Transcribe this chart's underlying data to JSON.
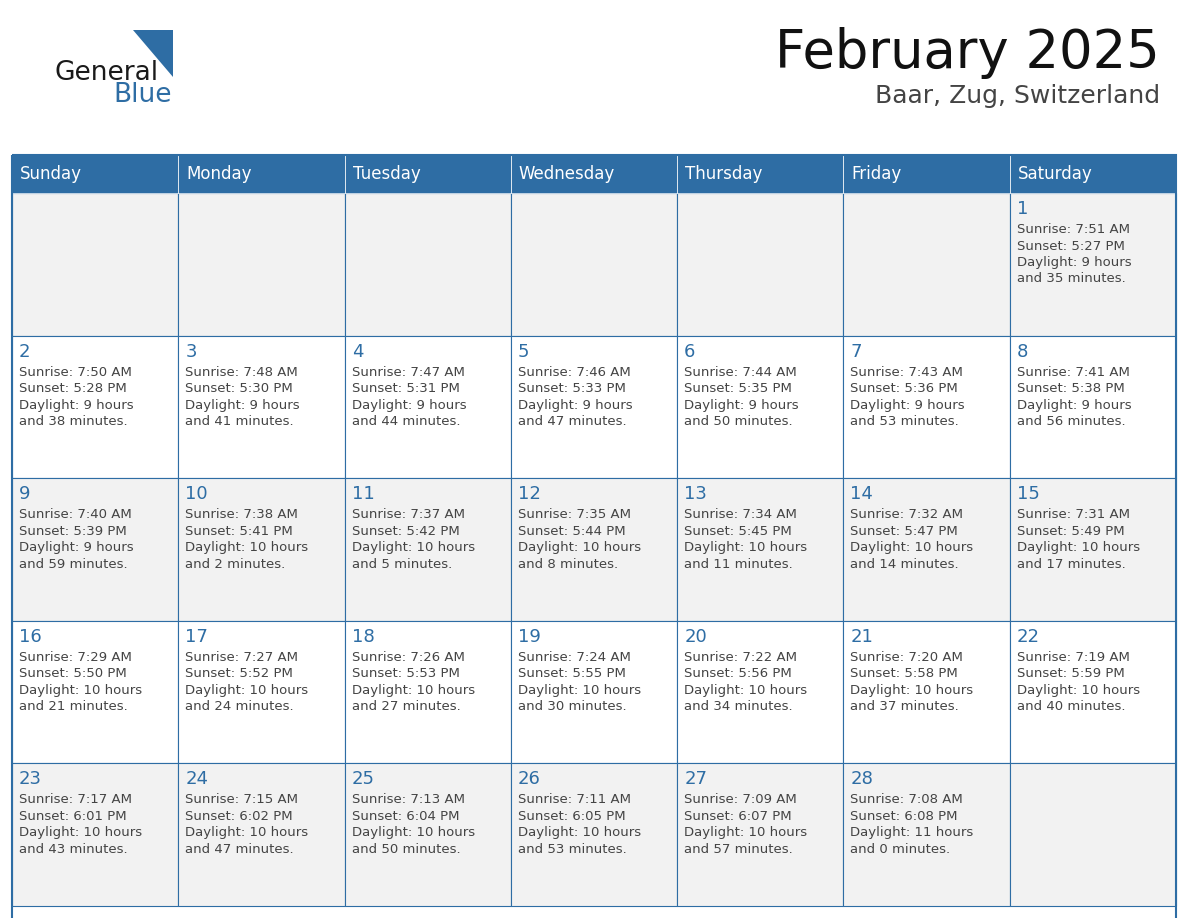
{
  "title": "February 2025",
  "subtitle": "Baar, Zug, Switzerland",
  "days_of_week": [
    "Sunday",
    "Monday",
    "Tuesday",
    "Wednesday",
    "Thursday",
    "Friday",
    "Saturday"
  ],
  "header_bg": "#2E6DA4",
  "header_text": "#FFFFFF",
  "cell_bg_odd": "#F2F2F2",
  "cell_bg_even": "#FFFFFF",
  "border_color": "#2E6DA4",
  "day_number_color": "#2E6DA4",
  "text_color": "#444444",
  "logo_general_color": "#1a1a1a",
  "logo_blue_color": "#2E6DA4",
  "weeks": [
    [
      {
        "day": null,
        "sunrise": null,
        "sunset": null,
        "daylight": null
      },
      {
        "day": null,
        "sunrise": null,
        "sunset": null,
        "daylight": null
      },
      {
        "day": null,
        "sunrise": null,
        "sunset": null,
        "daylight": null
      },
      {
        "day": null,
        "sunrise": null,
        "sunset": null,
        "daylight": null
      },
      {
        "day": null,
        "sunrise": null,
        "sunset": null,
        "daylight": null
      },
      {
        "day": null,
        "sunrise": null,
        "sunset": null,
        "daylight": null
      },
      {
        "day": 1,
        "sunrise": "7:51 AM",
        "sunset": "5:27 PM",
        "daylight": "9 hours\nand 35 minutes."
      }
    ],
    [
      {
        "day": 2,
        "sunrise": "7:50 AM",
        "sunset": "5:28 PM",
        "daylight": "9 hours\nand 38 minutes."
      },
      {
        "day": 3,
        "sunrise": "7:48 AM",
        "sunset": "5:30 PM",
        "daylight": "9 hours\nand 41 minutes."
      },
      {
        "day": 4,
        "sunrise": "7:47 AM",
        "sunset": "5:31 PM",
        "daylight": "9 hours\nand 44 minutes."
      },
      {
        "day": 5,
        "sunrise": "7:46 AM",
        "sunset": "5:33 PM",
        "daylight": "9 hours\nand 47 minutes."
      },
      {
        "day": 6,
        "sunrise": "7:44 AM",
        "sunset": "5:35 PM",
        "daylight": "9 hours\nand 50 minutes."
      },
      {
        "day": 7,
        "sunrise": "7:43 AM",
        "sunset": "5:36 PM",
        "daylight": "9 hours\nand 53 minutes."
      },
      {
        "day": 8,
        "sunrise": "7:41 AM",
        "sunset": "5:38 PM",
        "daylight": "9 hours\nand 56 minutes."
      }
    ],
    [
      {
        "day": 9,
        "sunrise": "7:40 AM",
        "sunset": "5:39 PM",
        "daylight": "9 hours\nand 59 minutes."
      },
      {
        "day": 10,
        "sunrise": "7:38 AM",
        "sunset": "5:41 PM",
        "daylight": "10 hours\nand 2 minutes."
      },
      {
        "day": 11,
        "sunrise": "7:37 AM",
        "sunset": "5:42 PM",
        "daylight": "10 hours\nand 5 minutes."
      },
      {
        "day": 12,
        "sunrise": "7:35 AM",
        "sunset": "5:44 PM",
        "daylight": "10 hours\nand 8 minutes."
      },
      {
        "day": 13,
        "sunrise": "7:34 AM",
        "sunset": "5:45 PM",
        "daylight": "10 hours\nand 11 minutes."
      },
      {
        "day": 14,
        "sunrise": "7:32 AM",
        "sunset": "5:47 PM",
        "daylight": "10 hours\nand 14 minutes."
      },
      {
        "day": 15,
        "sunrise": "7:31 AM",
        "sunset": "5:49 PM",
        "daylight": "10 hours\nand 17 minutes."
      }
    ],
    [
      {
        "day": 16,
        "sunrise": "7:29 AM",
        "sunset": "5:50 PM",
        "daylight": "10 hours\nand 21 minutes."
      },
      {
        "day": 17,
        "sunrise": "7:27 AM",
        "sunset": "5:52 PM",
        "daylight": "10 hours\nand 24 minutes."
      },
      {
        "day": 18,
        "sunrise": "7:26 AM",
        "sunset": "5:53 PM",
        "daylight": "10 hours\nand 27 minutes."
      },
      {
        "day": 19,
        "sunrise": "7:24 AM",
        "sunset": "5:55 PM",
        "daylight": "10 hours\nand 30 minutes."
      },
      {
        "day": 20,
        "sunrise": "7:22 AM",
        "sunset": "5:56 PM",
        "daylight": "10 hours\nand 34 minutes."
      },
      {
        "day": 21,
        "sunrise": "7:20 AM",
        "sunset": "5:58 PM",
        "daylight": "10 hours\nand 37 minutes."
      },
      {
        "day": 22,
        "sunrise": "7:19 AM",
        "sunset": "5:59 PM",
        "daylight": "10 hours\nand 40 minutes."
      }
    ],
    [
      {
        "day": 23,
        "sunrise": "7:17 AM",
        "sunset": "6:01 PM",
        "daylight": "10 hours\nand 43 minutes."
      },
      {
        "day": 24,
        "sunrise": "7:15 AM",
        "sunset": "6:02 PM",
        "daylight": "10 hours\nand 47 minutes."
      },
      {
        "day": 25,
        "sunrise": "7:13 AM",
        "sunset": "6:04 PM",
        "daylight": "10 hours\nand 50 minutes."
      },
      {
        "day": 26,
        "sunrise": "7:11 AM",
        "sunset": "6:05 PM",
        "daylight": "10 hours\nand 53 minutes."
      },
      {
        "day": 27,
        "sunrise": "7:09 AM",
        "sunset": "6:07 PM",
        "daylight": "10 hours\nand 57 minutes."
      },
      {
        "day": 28,
        "sunrise": "7:08 AM",
        "sunset": "6:08 PM",
        "daylight": "11 hours\nand 0 minutes."
      },
      {
        "day": null,
        "sunrise": null,
        "sunset": null,
        "daylight": null
      }
    ]
  ]
}
